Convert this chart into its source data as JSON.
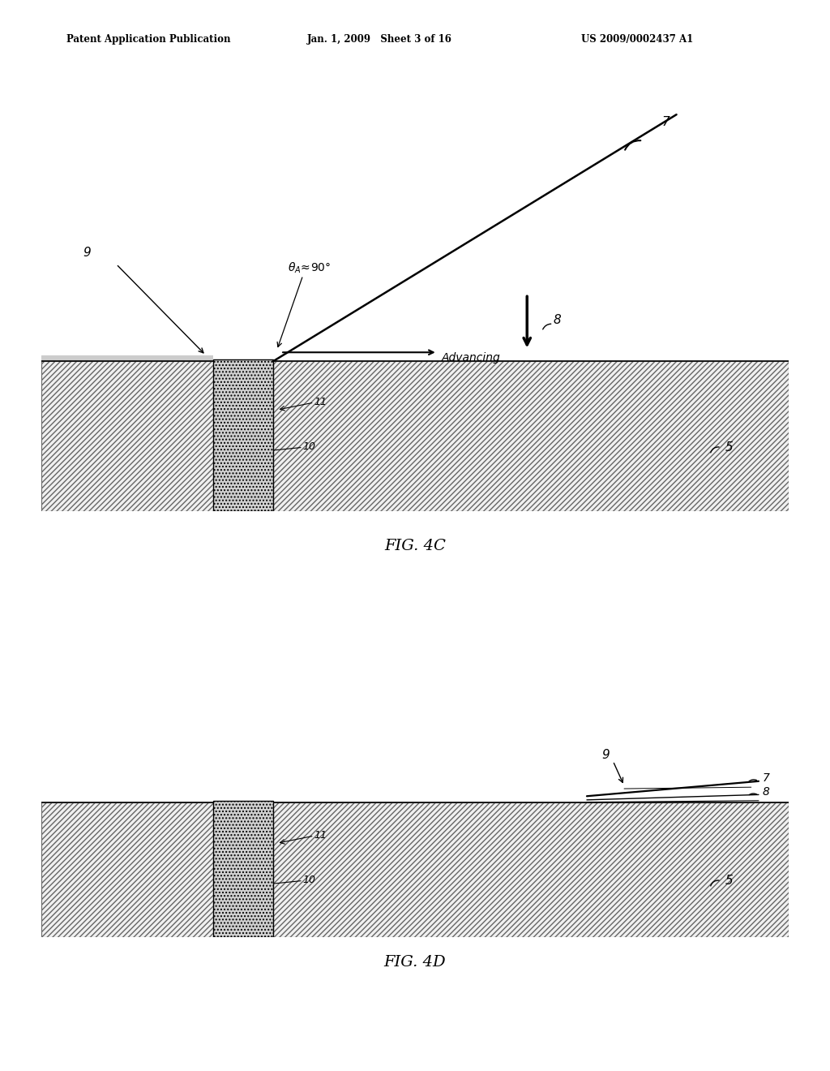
{
  "bg_color": "#ffffff",
  "line_color": "#000000",
  "header_left": "Patent Application Publication",
  "header_mid": "Jan. 1, 2009   Sheet 3 of 16",
  "header_right": "US 2009/0002437 A1",
  "fig4c_label": "FIG. 4C",
  "fig4d_label": "FIG. 4D"
}
